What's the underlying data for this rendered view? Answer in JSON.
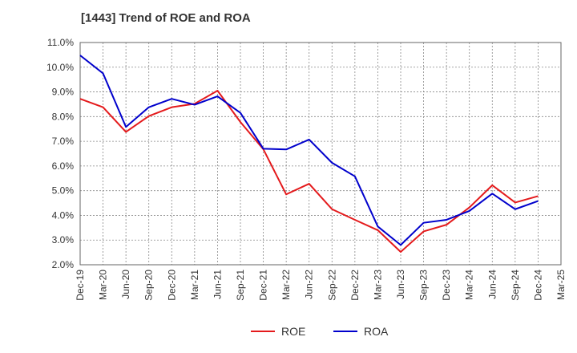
{
  "chart_data": {
    "type": "line",
    "title": "[1443]  Trend of ROE and ROA",
    "xlabel": "",
    "ylabel": "",
    "categories": [
      "Dec-19",
      "Mar-20",
      "Jun-20",
      "Sep-20",
      "Dec-20",
      "Mar-21",
      "Jun-21",
      "Sep-21",
      "Dec-21",
      "Mar-22",
      "Jun-22",
      "Sep-22",
      "Dec-22",
      "Mar-23",
      "Jun-23",
      "Sep-23",
      "Dec-23",
      "Mar-24",
      "Jun-24",
      "Sep-24",
      "Dec-24",
      "Mar-25"
    ],
    "yticks": [
      "2.0%",
      "3.0%",
      "4.0%",
      "5.0%",
      "6.0%",
      "7.0%",
      "8.0%",
      "9.0%",
      "10.0%",
      "11.0%"
    ],
    "ylim": [
      2.0,
      11.0
    ],
    "grid": true,
    "legend_position": "bottom",
    "series": [
      {
        "name": "ROE",
        "color": "#e41a1c",
        "values": [
          8.72,
          8.38,
          7.38,
          8.02,
          8.38,
          8.52,
          9.05,
          7.78,
          6.68,
          4.85,
          5.28,
          4.25,
          3.82,
          3.4,
          2.52,
          3.35,
          3.62,
          4.32,
          5.22,
          4.52,
          4.78,
          null
        ]
      },
      {
        "name": "ROA",
        "color": "#0000cc",
        "values": [
          10.48,
          9.75,
          7.58,
          8.38,
          8.72,
          8.48,
          8.82,
          8.15,
          6.7,
          6.67,
          7.07,
          6.13,
          5.58,
          3.55,
          2.8,
          3.7,
          3.82,
          4.18,
          4.88,
          4.25,
          4.58,
          null
        ]
      }
    ]
  }
}
